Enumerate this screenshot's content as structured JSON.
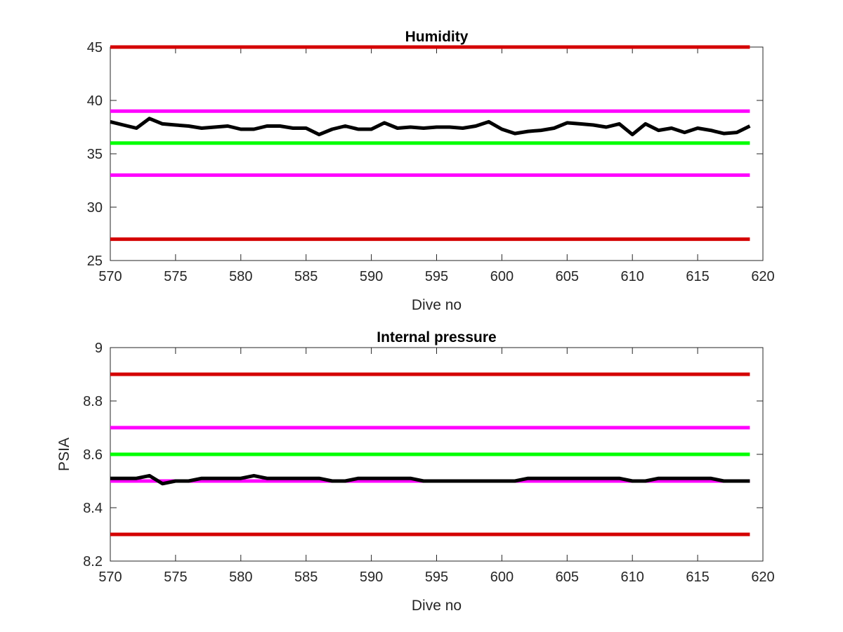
{
  "chart_data": [
    {
      "type": "line",
      "title": "Humidity",
      "xlabel": "Dive no",
      "ylabel": "",
      "xlim": [
        570,
        620
      ],
      "ylim": [
        25,
        45
      ],
      "xticks": [
        570,
        575,
        580,
        585,
        590,
        595,
        600,
        605,
        610,
        615,
        620
      ],
      "yticks": [
        25,
        30,
        35,
        40,
        45
      ],
      "grid": false,
      "thresholds": [
        {
          "value": 45,
          "color": "#d40000"
        },
        {
          "value": 39,
          "color": "#ff00ff"
        },
        {
          "value": 36,
          "color": "#00ff00"
        },
        {
          "value": 33,
          "color": "#ff00ff"
        },
        {
          "value": 27,
          "color": "#d40000"
        }
      ],
      "series": [
        {
          "color": "#000000",
          "x": [
            570,
            571,
            572,
            573,
            574,
            575,
            576,
            577,
            578,
            579,
            580,
            581,
            582,
            583,
            584,
            585,
            586,
            587,
            588,
            589,
            590,
            591,
            592,
            593,
            594,
            595,
            596,
            597,
            598,
            599,
            600,
            601,
            602,
            603,
            604,
            605,
            606,
            607,
            608,
            609,
            610,
            611,
            612,
            613,
            614,
            615,
            616,
            617,
            618,
            619
          ],
          "y": [
            38.0,
            37.7,
            37.4,
            38.3,
            37.8,
            37.7,
            37.6,
            37.4,
            37.5,
            37.6,
            37.3,
            37.3,
            37.6,
            37.6,
            37.4,
            37.4,
            36.8,
            37.3,
            37.6,
            37.3,
            37.3,
            37.9,
            37.4,
            37.5,
            37.4,
            37.5,
            37.5,
            37.4,
            37.6,
            38.0,
            37.3,
            36.9,
            37.1,
            37.2,
            37.4,
            37.9,
            37.8,
            37.7,
            37.5,
            37.8,
            36.8,
            37.8,
            37.2,
            37.4,
            37.0,
            37.4,
            37.2,
            36.9,
            37.0,
            37.6
          ]
        }
      ]
    },
    {
      "type": "line",
      "title": "Internal pressure",
      "xlabel": "Dive no",
      "ylabel": "PSIA",
      "xlim": [
        570,
        620
      ],
      "ylim": [
        8.2,
        9.0
      ],
      "xticks": [
        570,
        575,
        580,
        585,
        590,
        595,
        600,
        605,
        610,
        615,
        620
      ],
      "yticks": [
        8.2,
        8.4,
        8.6,
        8.8,
        9
      ],
      "grid": false,
      "thresholds": [
        {
          "value": 8.9,
          "color": "#d40000"
        },
        {
          "value": 8.7,
          "color": "#ff00ff"
        },
        {
          "value": 8.6,
          "color": "#00ff00"
        },
        {
          "value": 8.5,
          "color": "#ff00ff"
        },
        {
          "value": 8.3,
          "color": "#d40000"
        }
      ],
      "series": [
        {
          "color": "#000000",
          "x": [
            570,
            571,
            572,
            573,
            574,
            575,
            576,
            577,
            578,
            579,
            580,
            581,
            582,
            583,
            584,
            585,
            586,
            587,
            588,
            589,
            590,
            591,
            592,
            593,
            594,
            595,
            596,
            597,
            598,
            599,
            600,
            601,
            602,
            603,
            604,
            605,
            606,
            607,
            608,
            609,
            610,
            611,
            612,
            613,
            614,
            615,
            616,
            617,
            618,
            619
          ],
          "y": [
            8.51,
            8.51,
            8.51,
            8.52,
            8.49,
            8.5,
            8.5,
            8.51,
            8.51,
            8.51,
            8.51,
            8.52,
            8.51,
            8.51,
            8.51,
            8.51,
            8.51,
            8.5,
            8.5,
            8.51,
            8.51,
            8.51,
            8.51,
            8.51,
            8.5,
            8.5,
            8.5,
            8.5,
            8.5,
            8.5,
            8.5,
            8.5,
            8.51,
            8.51,
            8.51,
            8.51,
            8.51,
            8.51,
            8.51,
            8.51,
            8.5,
            8.5,
            8.51,
            8.51,
            8.51,
            8.51,
            8.51,
            8.5,
            8.5,
            8.5
          ]
        }
      ]
    }
  ]
}
